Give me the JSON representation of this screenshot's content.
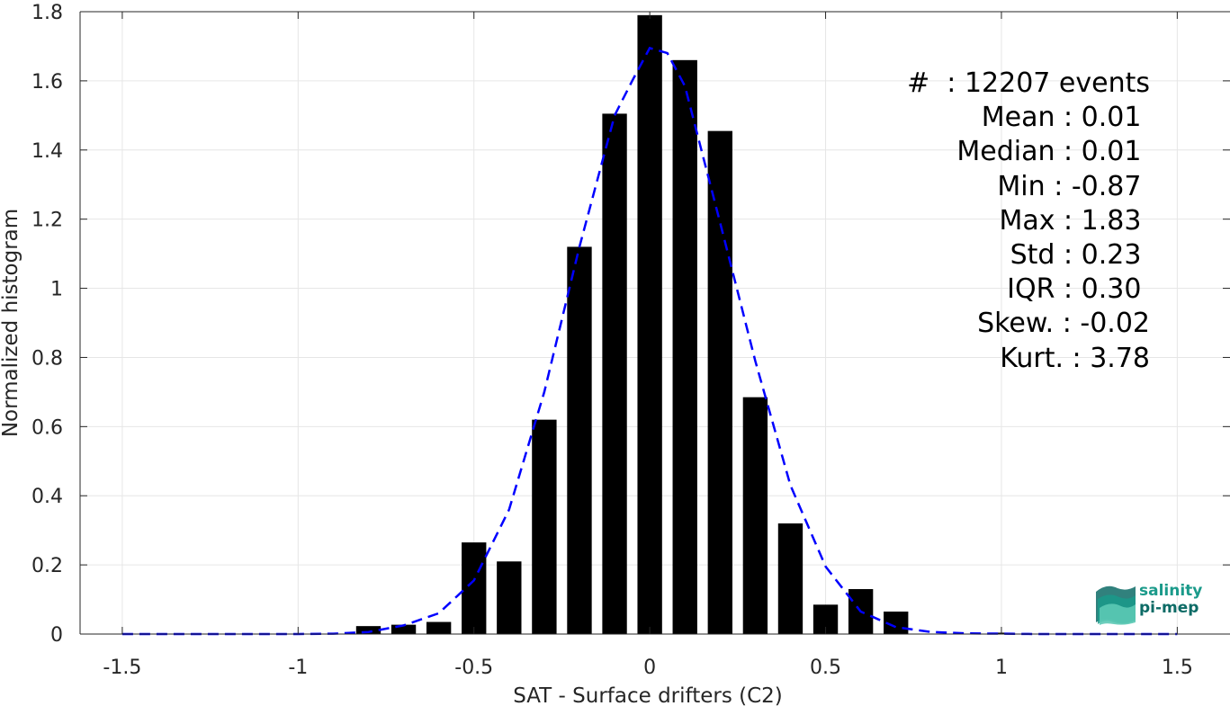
{
  "chart_data": {
    "type": "bar",
    "xlabel": "SAT - Surface drifters (C2)",
    "ylabel": "Normalized histogram",
    "xlim": [
      -1.62,
      1.65
    ],
    "ylim": [
      0,
      1.8
    ],
    "xticks": [
      -1.5,
      -1,
      -0.5,
      0,
      0.5,
      1,
      1.5
    ],
    "xtick_labels": [
      "-1.5",
      "-1",
      "-0.5",
      "0",
      "0.5",
      "1",
      "1.5"
    ],
    "yticks": [
      0,
      0.2,
      0.4,
      0.6,
      0.8,
      1,
      1.2,
      1.4,
      1.6,
      1.8
    ],
    "ytick_labels": [
      "0",
      "0.2",
      "0.4",
      "0.6",
      "0.8",
      "1",
      "1.2",
      "1.4",
      "1.6",
      "1.8"
    ],
    "grid": true,
    "bar_width": 0.07,
    "bars": [
      {
        "x": -0.8,
        "y": 0.023
      },
      {
        "x": -0.7,
        "y": 0.027
      },
      {
        "x": -0.6,
        "y": 0.035
      },
      {
        "x": -0.5,
        "y": 0.265
      },
      {
        "x": -0.4,
        "y": 0.21
      },
      {
        "x": -0.3,
        "y": 0.62
      },
      {
        "x": -0.2,
        "y": 1.12
      },
      {
        "x": -0.1,
        "y": 1.505
      },
      {
        "x": 0.0,
        "y": 1.79
      },
      {
        "x": 0.1,
        "y": 1.66
      },
      {
        "x": 0.2,
        "y": 1.455
      },
      {
        "x": 0.3,
        "y": 0.685
      },
      {
        "x": 0.4,
        "y": 0.32
      },
      {
        "x": 0.5,
        "y": 0.085
      },
      {
        "x": 0.6,
        "y": 0.13
      },
      {
        "x": 0.7,
        "y": 0.065
      },
      {
        "x": 1.0,
        "y": 0.004
      }
    ],
    "fit_line": {
      "style": "dashed",
      "color": "#0000ff",
      "x": [
        -1.5,
        -1.4,
        -1.3,
        -1.2,
        -1.1,
        -1.0,
        -0.9,
        -0.8,
        -0.7,
        -0.6,
        -0.5,
        -0.4,
        -0.3,
        -0.2,
        -0.1,
        -0.05,
        0.0,
        0.05,
        0.1,
        0.2,
        0.3,
        0.4,
        0.5,
        0.6,
        0.7,
        0.8,
        0.9,
        1.0,
        1.1,
        1.2,
        1.3,
        1.4,
        1.5
      ],
      "y": [
        0,
        0,
        0,
        0,
        0,
        0,
        0.001,
        0.006,
        0.025,
        0.06,
        0.155,
        0.36,
        0.7,
        1.12,
        1.5,
        1.6,
        1.695,
        1.68,
        1.585,
        1.19,
        0.79,
        0.43,
        0.195,
        0.065,
        0.02,
        0.006,
        0.002,
        0.001,
        0,
        0,
        0,
        0,
        0
      ]
    }
  },
  "stats": [
    "#  : 12207 events",
    "Mean : 0.01 ",
    "Median : 0.01 ",
    "Min : -0.87 ",
    "Max : 1.83 ",
    "Std : 0.23 ",
    "IQR : 0.30 ",
    "Skew. : -0.02",
    "Kurt. : 3.78"
  ],
  "logo": {
    "line1": "salinity",
    "line2": "pi-mep",
    "colors": [
      "#1a9a8a",
      "#5cc9b5",
      "#0d6b66"
    ]
  }
}
